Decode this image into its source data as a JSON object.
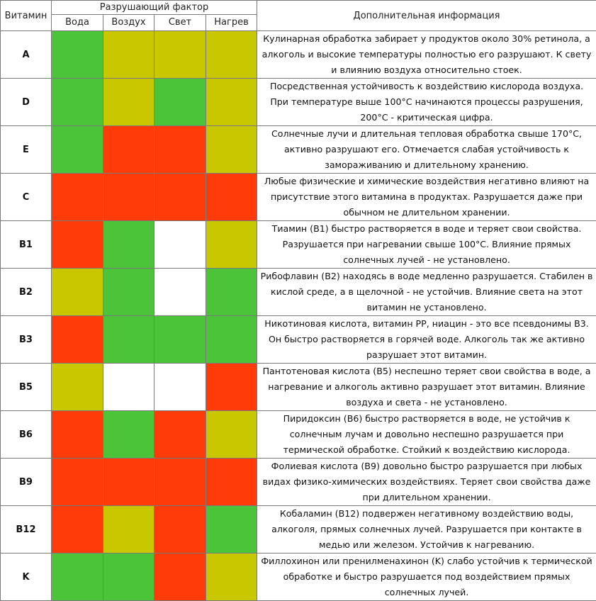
{
  "header": {
    "vitamin": "Витамин",
    "factor_group": "Разрушающий фактор",
    "factors": [
      "Вода",
      "Воздух",
      "Свет",
      "Нагрев"
    ],
    "info": "Дополнительная информация"
  },
  "colors": {
    "green": "#4cc43a",
    "yellow": "#c9c800",
    "red": "#ff3b0a",
    "white": "#ffffff"
  },
  "rows": [
    {
      "name": "A",
      "cells": [
        "green",
        "yellow",
        "yellow",
        "yellow"
      ],
      "info": "Кулинарная обработка забирает у продуктов около 30% ретинола, а алкоголь и высокие температуры полностью его разрушают. К свету и влиянию воздуха относительно стоек."
    },
    {
      "name": "D",
      "cells": [
        "green",
        "yellow",
        "green",
        "yellow"
      ],
      "info": "Посредственная устойчивость к воздействию кислорода воздуха. При температуре выше 100°C начинаются процессы разрушения, 200°C - критическая цифра."
    },
    {
      "name": "E",
      "cells": [
        "green",
        "red",
        "red",
        "yellow"
      ],
      "info": "Солнечные лучи и длительная тепловая обработка свыше 170°C, активно разрушают его. Отмечается слабая устойчивость к замораживанию и длительному хранению."
    },
    {
      "name": "C",
      "cells": [
        "red",
        "red",
        "red",
        "red"
      ],
      "info": "Любые физические и химические воздействия негативно влияют на присутствие этого витамина в продуктах. Разрушается даже при обычном не длительном хранении."
    },
    {
      "name": "B1",
      "cells": [
        "red",
        "green",
        "white",
        "yellow"
      ],
      "info": "Тиамин (B1) быстро растворяется в воде и теряет свои свойства. Разрушается при нагревании свыше 100°C. Влияние прямых солнечных лучей - не установлено."
    },
    {
      "name": "B2",
      "cells": [
        "yellow",
        "green",
        "white",
        "green"
      ],
      "info": "Рибофлавин (B2) находясь в воде медленно разрушается. Стабилен в кислой среде, а в щелочной - не устойчив. Влияние света на этот витамин не установлено."
    },
    {
      "name": "B3",
      "cells": [
        "red",
        "green",
        "green",
        "green"
      ],
      "info": "Никотиновая кислота, витамин PP, ниацин - это все псевдонимы B3. Он быстро растворяется в горячей воде. Алкоголь так же активно разрушает этот витамин."
    },
    {
      "name": "B5",
      "cells": [
        "yellow",
        "white",
        "white",
        "red"
      ],
      "info": "Пантотеновая кислота (B5) неспешно теряет свои свойства в воде, а нагревание и алкоголь активно разрушает этот витамин. Влияние воздуха и света - не установлено."
    },
    {
      "name": "B6",
      "cells": [
        "red",
        "green",
        "red",
        "yellow"
      ],
      "info": "Пиридоксин (B6) быстро растворяется в воде, не устойчив к солнечным лучам и довольно неспешно разрушается при термической обработке. Стойкий к воздействию кислорода."
    },
    {
      "name": "B9",
      "cells": [
        "red",
        "red",
        "red",
        "red"
      ],
      "info": "Фолиевая кислота (B9) довольно быстро разрушается при любых видах физико-химических воздействиях. Теряет свои свойства даже при длительном хранении."
    },
    {
      "name": "B12",
      "cells": [
        "red",
        "yellow",
        "red",
        "green"
      ],
      "info": "Кобаламин (B12) подвержен негативному воздействию воды, алкоголя, прямых солнечных лучей. Разрушается при контакте в медью или железом. Устойчив к нагреванию."
    },
    {
      "name": "K",
      "cells": [
        "green",
        "green",
        "red",
        "yellow"
      ],
      "info": "Филлохинон или пренилменахинон (K) слабо устойчив к термической обработке и быстро разрушается под воздействием прямых солнечных лучей."
    }
  ]
}
